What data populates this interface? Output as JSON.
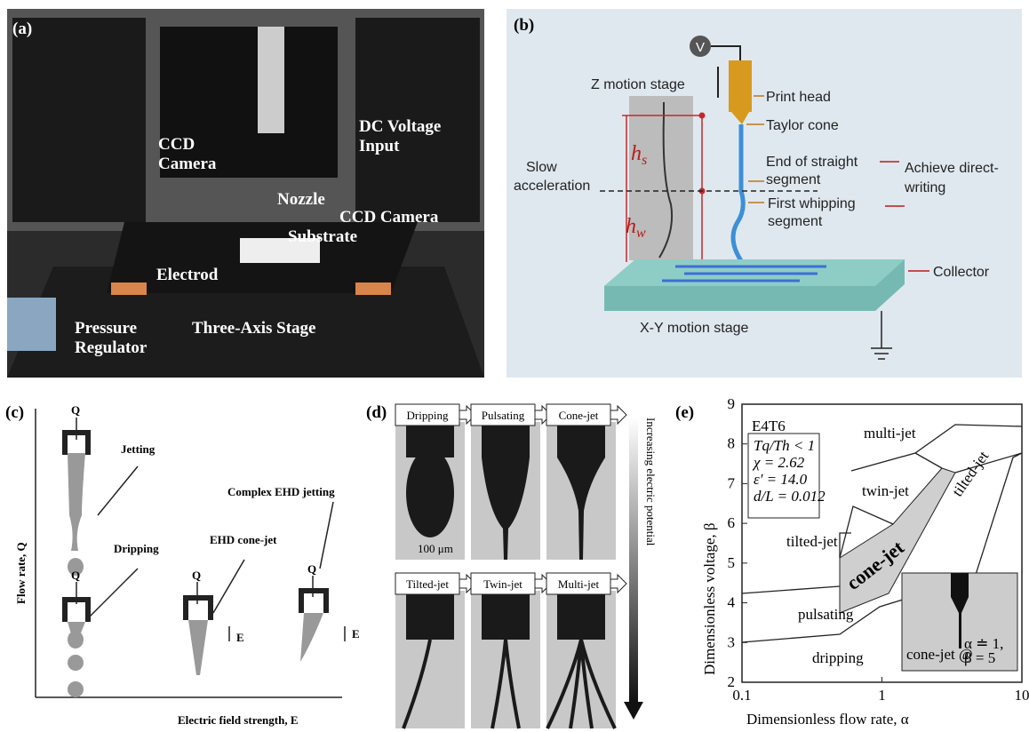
{
  "panels": {
    "a": {
      "label": "(a)",
      "callouts": [
        "CCD",
        "Camera",
        "DC Voltage",
        "Input",
        "Nozzle",
        "CCD Camera",
        "Substrate",
        "Electrod",
        "Pressure",
        "Regulator",
        "Three-Axis Stage"
      ]
    },
    "b": {
      "label": "(b)",
      "voltage": "V",
      "z_stage": "Z motion stage",
      "print_head": "Print head",
      "taylor_cone": "Taylor cone",
      "h_s": {
        "base": "h",
        "sub": "s"
      },
      "h_w": {
        "base": "h",
        "sub": "w"
      },
      "slow_acceleration": [
        "Slow",
        "acceleration"
      ],
      "end_straight": [
        "End of straight",
        "segment"
      ],
      "achieve": [
        "Achieve direct-",
        "writing"
      ],
      "first_whipping": [
        "First whipping",
        "segment"
      ],
      "collector": "Collector",
      "xy_stage": "X-Y motion stage"
    },
    "c": {
      "label": "(c)",
      "flow": "Q",
      "jetting": "Jetting",
      "dripping": "Dripping",
      "complex": "Complex EHD jetting",
      "cone_jet": "EHD cone-jet",
      "field": "E",
      "y_axis": "Flow rate, Q",
      "x_axis": "Electric field strength, E"
    },
    "d": {
      "label": "(d)",
      "modes": [
        "Dripping",
        "Pulsating",
        "Cone-jet",
        "Tilted-jet",
        "Twin-jet",
        "Multi-jet"
      ],
      "scale_bar": "100 μm",
      "arrow_label": "Increasing electric potential"
    },
    "e": {
      "label": "(e)",
      "case": "E4T6",
      "params": [
        "Tq/Th < 1",
        "χ = 2.62",
        "ε′ = 14.0",
        "d/L = 0.012"
      ],
      "regions": [
        "multi-jet",
        "twin-jet",
        "tilted-jet",
        "cone-jet",
        "tilted-jet",
        "pulsating",
        "dripping"
      ],
      "inset": [
        "cone-jet @",
        "α ≐ 1,",
        "β = 5"
      ],
      "x_axis": "Dimensionless flow rate, α",
      "y_axis": "Dimensionless voltage, β",
      "xlim": [
        0.1,
        10
      ],
      "ylim": [
        2,
        9
      ],
      "xscale": "log",
      "xticks": [
        0.1,
        1,
        10
      ],
      "yticks": [
        2,
        3,
        4,
        5,
        6,
        7,
        8,
        9
      ]
    }
  }
}
